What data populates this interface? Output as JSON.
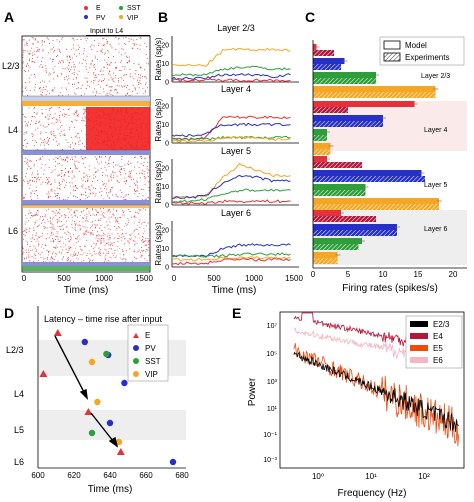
{
  "panels": {
    "A": {
      "letter": "A",
      "legend": [
        "E",
        "PV",
        "SST",
        "VIP"
      ],
      "input_label": "Input to L4",
      "layers": [
        "L2/3",
        "L4",
        "L5",
        "L6"
      ],
      "x_ticks": [
        "0",
        "500",
        "1000",
        "1500"
      ],
      "xlabel": "Time (ms)"
    },
    "B": {
      "letter": "B",
      "ylabel": "Rates (sp/s)",
      "xlabel": "Time (ms)",
      "x_ticks": [
        "0",
        "500",
        "1000",
        "1500"
      ],
      "subplots": [
        {
          "title": "Layer 2/3",
          "y_ticks": [
            "0",
            "10",
            "20"
          ]
        },
        {
          "title": "Layer 4",
          "y_ticks": [
            "0",
            "10",
            "20"
          ]
        },
        {
          "title": "Layer 5",
          "y_ticks": [
            "0",
            "10",
            "20"
          ]
        },
        {
          "title": "Layer 6",
          "y_ticks": [
            "0",
            "10",
            "20"
          ]
        }
      ]
    },
    "C": {
      "letter": "C",
      "legend": [
        "Model",
        "Experiments"
      ],
      "xlabel": "Firing rates (spikes/s)",
      "x_ticks": [
        "0",
        "5",
        "10",
        "15",
        "20"
      ],
      "layers": [
        "Layer 2/3",
        "Layer 4",
        "Layer 5",
        "Layer 6"
      ]
    },
    "D": {
      "letter": "D",
      "title": "Latency – time rise after input",
      "xlabel": "Time (ms)",
      "x_ticks": [
        "600",
        "620",
        "640",
        "660",
        "680"
      ],
      "layers": [
        "L2/3",
        "L4",
        "L5",
        "L6"
      ],
      "legend": [
        "E",
        "PV",
        "SST",
        "VIP"
      ]
    },
    "E": {
      "letter": "E",
      "ylabel": "Power",
      "xlabel": "Frequency (Hz)",
      "y_ticks": [
        "10⁷",
        "10⁵",
        "10³",
        "10¹",
        "10⁻¹",
        "10⁻³"
      ],
      "x_ticks": [
        "10⁰",
        "10¹",
        "10²"
      ],
      "legend": [
        "E2/3",
        "E4",
        "E5",
        "E6"
      ]
    }
  },
  "colors": {
    "E": "#e8303a",
    "PV": "#2630c8",
    "SST": "#2f9e3a",
    "VIP": "#f5a623",
    "E23": "#000000",
    "E4": "#b5173a",
    "E5": "#f04a0c",
    "E6": "#f4b6c4"
  },
  "chart_data": [
    {
      "type": "line",
      "panel": "B",
      "title": "Layer 2/3",
      "x": [
        0,
        200,
        400,
        600,
        800,
        1000,
        1200,
        1400
      ],
      "series": [
        {
          "name": "VIP",
          "values": [
            9,
            9,
            9,
            17,
            18,
            17,
            18,
            17
          ]
        },
        {
          "name": "SST",
          "values": [
            4,
            4,
            4,
            7,
            8,
            8,
            7,
            7
          ]
        },
        {
          "name": "PV",
          "values": [
            2,
            2,
            2,
            4,
            4,
            4,
            3,
            4
          ]
        },
        {
          "name": "E",
          "values": [
            1,
            1,
            1,
            1,
            1,
            1,
            1,
            1
          ]
        }
      ],
      "ylim": [
        0,
        25
      ]
    },
    {
      "type": "line",
      "panel": "B",
      "title": "Layer 4",
      "x": [
        0,
        200,
        400,
        600,
        800,
        1000,
        1200,
        1400
      ],
      "series": [
        {
          "name": "E",
          "values": [
            2,
            2,
            3,
            14,
            14,
            14,
            14,
            14
          ]
        },
        {
          "name": "PV",
          "values": [
            4,
            4,
            5,
            10,
            10,
            10,
            10,
            10
          ]
        },
        {
          "name": "SST",
          "values": [
            2,
            2,
            2,
            3,
            3,
            3,
            3,
            3
          ]
        },
        {
          "name": "VIP",
          "values": [
            1,
            1,
            1,
            3,
            3,
            3,
            2,
            2
          ]
        }
      ],
      "ylim": [
        0,
        25
      ]
    },
    {
      "type": "line",
      "panel": "B",
      "title": "Layer 5",
      "x": [
        0,
        200,
        400,
        600,
        800,
        1000,
        1200,
        1400
      ],
      "series": [
        {
          "name": "VIP",
          "values": [
            4,
            4,
            5,
            15,
            22,
            19,
            16,
            16
          ]
        },
        {
          "name": "PV",
          "values": [
            4,
            4,
            5,
            12,
            16,
            15,
            13,
            13
          ]
        },
        {
          "name": "SST",
          "values": [
            2,
            2,
            3,
            6,
            8,
            8,
            8,
            8
          ]
        },
        {
          "name": "E",
          "values": [
            1,
            1,
            1,
            2,
            2,
            2,
            2,
            2
          ]
        }
      ],
      "ylim": [
        0,
        25
      ]
    },
    {
      "type": "line",
      "panel": "B",
      "title": "Layer 6",
      "x": [
        0,
        200,
        400,
        600,
        800,
        1000,
        1200,
        1400
      ],
      "series": [
        {
          "name": "PV",
          "values": [
            6,
            6,
            6,
            10,
            12,
            12,
            12,
            12
          ]
        },
        {
          "name": "SST",
          "values": [
            6,
            6,
            6,
            6,
            7,
            7,
            7,
            7
          ]
        },
        {
          "name": "VIP",
          "values": [
            4,
            4,
            4,
            5,
            5,
            5,
            5,
            5
          ]
        },
        {
          "name": "E",
          "values": [
            2,
            2,
            2,
            4,
            4,
            4,
            4,
            4
          ]
        }
      ],
      "ylim": [
        0,
        25
      ]
    },
    {
      "type": "bar",
      "panel": "C",
      "orientation": "horizontal",
      "categories": [
        "L2/3 E",
        "L2/3 PV",
        "L2/3 SST",
        "L2/3 VIP",
        "L4 E",
        "L4 PV",
        "L4 SST",
        "L4 VIP",
        "L5 E",
        "L5 PV",
        "L5 SST",
        "L5 VIP",
        "L6 E",
        "L6 PV",
        "L6 SST",
        "L6 VIP"
      ],
      "series": [
        {
          "name": "Model",
          "values": [
            0.5,
            4.5,
            9,
            17.5,
            14.5,
            10,
            2,
            2.5,
            2,
            15.5,
            7.5,
            18,
            4,
            12,
            7,
            3.5
          ]
        },
        {
          "name": "Experiments",
          "values": [
            3,
            4,
            9,
            17.5,
            5,
            10,
            2,
            2.5,
            7,
            16,
            7.5,
            18,
            9,
            12,
            6.5,
            3.5
          ]
        }
      ],
      "xlim": [
        0,
        20
      ]
    },
    {
      "type": "scatter",
      "panel": "D",
      "xlim": [
        600,
        680
      ],
      "series": [
        {
          "name": "E",
          "points": [
            [
              611,
              "L2/3"
            ],
            [
              603,
              "L4 top"
            ],
            [
              628,
              "L5 top"
            ],
            [
              646,
              "L6"
            ]
          ]
        },
        {
          "name": "PV",
          "points": [
            [
              626,
              "L2/3"
            ],
            [
              639,
              "L4"
            ],
            [
              640,
              "L5"
            ],
            [
              675,
              "L6"
            ]
          ]
        },
        {
          "name": "SST",
          "points": [
            [
              638,
              "L2/3"
            ],
            [
              630,
              "L5"
            ]
          ]
        },
        {
          "name": "VIP",
          "points": [
            [
              630,
              "L2/3"
            ],
            [
              633,
              "L4"
            ],
            [
              645,
              "L5"
            ]
          ]
        }
      ]
    },
    {
      "type": "line",
      "panel": "E",
      "xscale": "log",
      "yscale": "log",
      "xlim": [
        0.3,
        600
      ],
      "ylim": [
        0.0001,
        100000000
      ],
      "series": [
        {
          "name": "E2/3",
          "values": "1/f-like spectrum, ~10^4 at 1 Hz to ~10^-1 at 300 Hz"
        },
        {
          "name": "E4",
          "values": "~10^7 at 1 Hz, ~10^5 at 200 Hz"
        },
        {
          "name": "E5",
          "values": "~10^4 at 1 Hz to ~10^-2 at 300 Hz, noisy"
        },
        {
          "name": "E6",
          "values": "~10^6 at 1 Hz to ~10^3 at 300 Hz"
        }
      ]
    }
  ]
}
